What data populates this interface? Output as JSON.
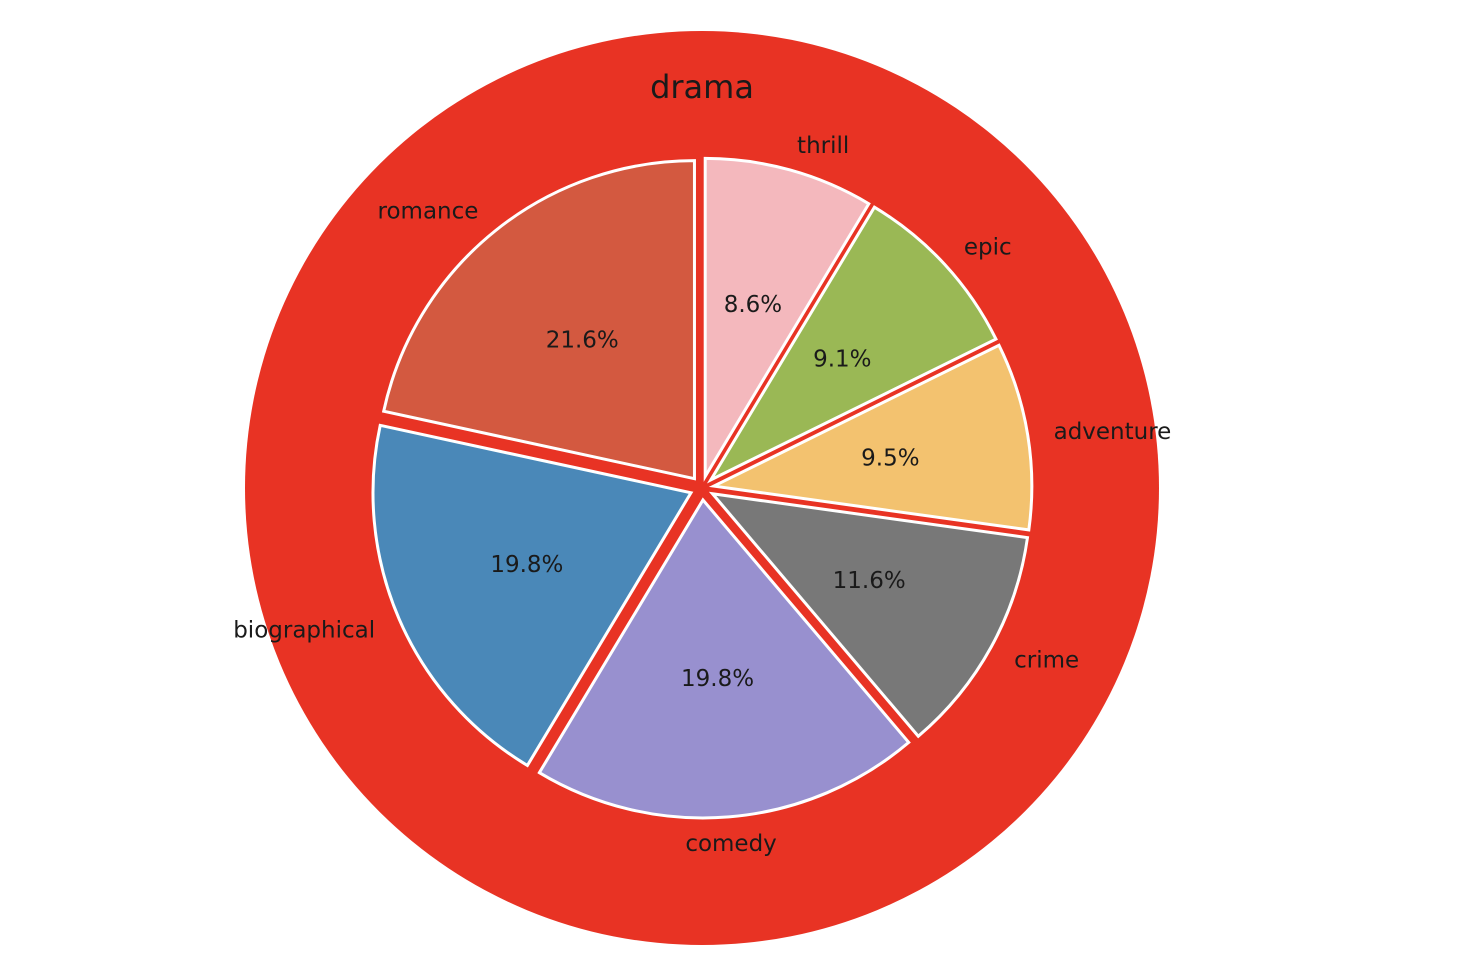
{
  "chart_data": {
    "type": "pie",
    "outer": {
      "label": "drama",
      "color": "#e83324"
    },
    "inner": {
      "slices": [
        {
          "label": "thrill",
          "value": 8.6,
          "pct_text": "8.6%",
          "color": "#f4b8bd"
        },
        {
          "label": "epic",
          "value": 9.1,
          "pct_text": "9.1%",
          "color": "#9ab855"
        },
        {
          "label": "adventure",
          "value": 9.5,
          "pct_text": "9.5%",
          "color": "#f3c26f"
        },
        {
          "label": "crime",
          "value": 11.6,
          "pct_text": "11.6%",
          "color": "#787878"
        },
        {
          "label": "comedy",
          "value": 19.8,
          "pct_text": "19.8%",
          "color": "#9890cf"
        },
        {
          "label": "biographical",
          "value": 19.8,
          "pct_text": "19.8%",
          "color": "#4a88b8"
        },
        {
          "label": "romance",
          "value": 21.6,
          "pct_text": "21.6%",
          "color": "#d35940"
        }
      ],
      "start_angle_deg": 90,
      "direction": "clockwise"
    }
  }
}
